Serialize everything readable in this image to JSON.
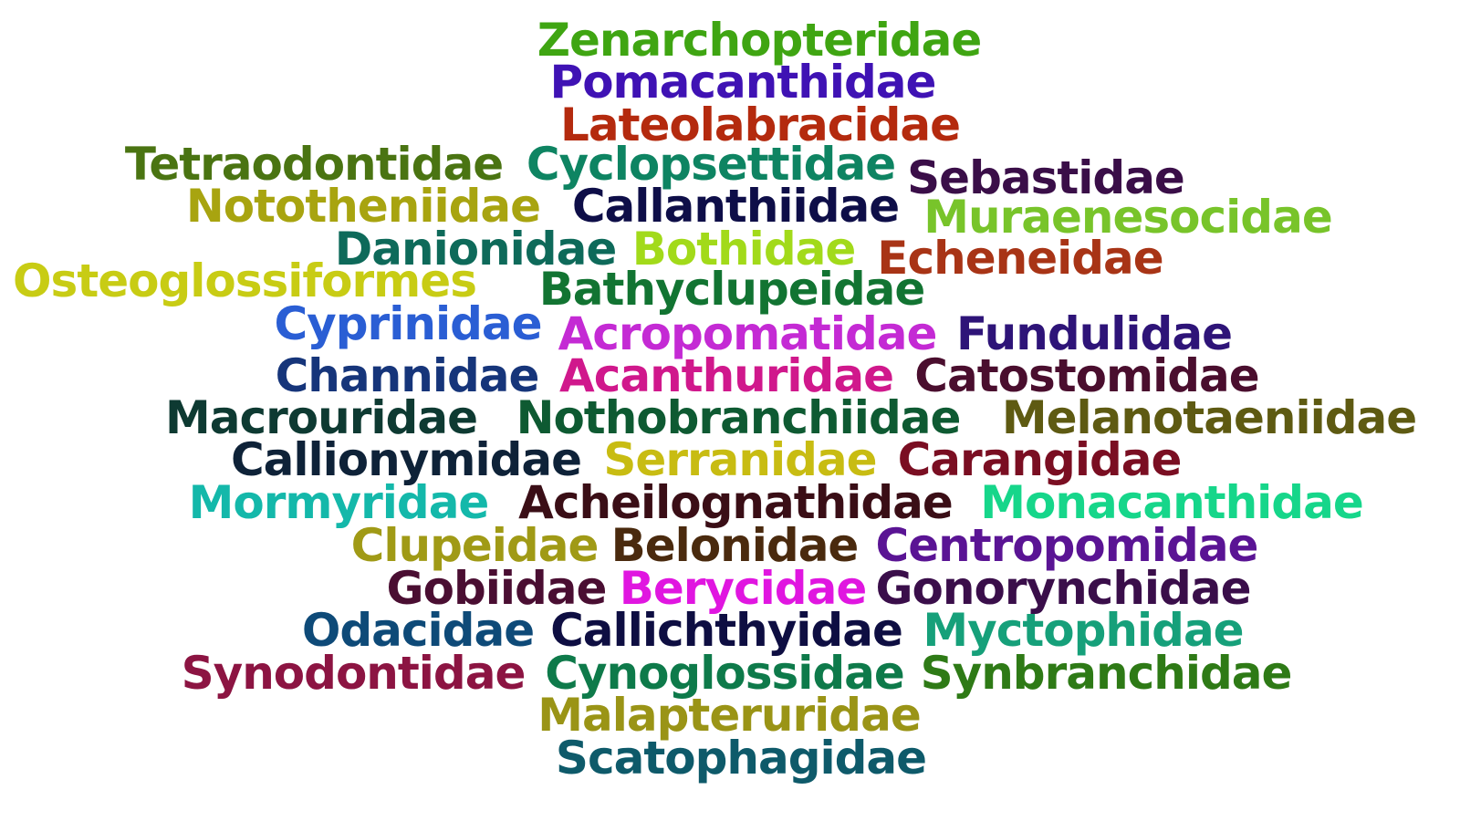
{
  "words": [
    {
      "text": "Zenarchopteridae",
      "color": "#3fa512"
    },
    {
      "text": "Pomacanthidae",
      "color": "#3f12b4"
    },
    {
      "text": "Lateolabracidae",
      "color": "#b42a0e"
    },
    {
      "text": "Tetraodontidae",
      "color": "#4a7412"
    },
    {
      "text": "Cyclopsettidae",
      "color": "#0e8462"
    },
    {
      "text": "Sebastidae",
      "color": "#3a0e48"
    },
    {
      "text": "Nototheniidae",
      "color": "#a8a410"
    },
    {
      "text": "Callanthiidae",
      "color": "#0e0e48"
    },
    {
      "text": "Muraenesocidae",
      "color": "#78c42a"
    },
    {
      "text": "Danionidae",
      "color": "#0e6a5a"
    },
    {
      "text": "Bothidae",
      "color": "#a2da1a"
    },
    {
      "text": "Echeneidae",
      "color": "#a83416"
    },
    {
      "text": "Osteoglossiformes",
      "color": "#c8cc14"
    },
    {
      "text": "Bathyclupeidae",
      "color": "#127432"
    },
    {
      "text": "Cyprinidae",
      "color": "#2a5ed4"
    },
    {
      "text": "Acropomatidae",
      "color": "#c42ad4"
    },
    {
      "text": "Fundulidae",
      "color": "#2e1478"
    },
    {
      "text": "Channidae",
      "color": "#16357a"
    },
    {
      "text": "Acanthuridae",
      "color": "#d0188c"
    },
    {
      "text": "Catostomidae",
      "color": "#4a0e2e"
    },
    {
      "text": "Macrouridae",
      "color": "#0e3a32"
    },
    {
      "text": "Nothobranchiidae",
      "color": "#0e5a32"
    },
    {
      "text": "Melanotaeniidae",
      "color": "#5e5a12"
    },
    {
      "text": "Callionymidae",
      "color": "#0e2238"
    },
    {
      "text": "Serranidae",
      "color": "#c8bc12"
    },
    {
      "text": "Carangidae",
      "color": "#7a0e22"
    },
    {
      "text": "Mormyridae",
      "color": "#14b8aa"
    },
    {
      "text": "Acheilognathidae",
      "color": "#3a0e16"
    },
    {
      "text": "Monacanthidae",
      "color": "#16d68a"
    },
    {
      "text": "Clupeidae",
      "color": "#a09a16"
    },
    {
      "text": "Belonidae",
      "color": "#4a2a0e"
    },
    {
      "text": "Centropomidae",
      "color": "#5a1494"
    },
    {
      "text": "Gobiidae",
      "color": "#4a0e32"
    },
    {
      "text": "Berycidae",
      "color": "#e016e0"
    },
    {
      "text": "Gonorynchidae",
      "color": "#3a0e4a"
    },
    {
      "text": "Odacidae",
      "color": "#0e4a78"
    },
    {
      "text": "Callichthyidae",
      "color": "#0e0e42"
    },
    {
      "text": "Myctophidae",
      "color": "#16a07a"
    },
    {
      "text": "Synodontidae",
      "color": "#8c1442"
    },
    {
      "text": "Cynoglossidae",
      "color": "#0e7a4a"
    },
    {
      "text": "Synbranchidae",
      "color": "#2e7a16"
    },
    {
      "text": "Malapteruridae",
      "color": "#9a9416"
    },
    {
      "text": "Scatophagidae",
      "color": "#0e5a6a"
    }
  ]
}
